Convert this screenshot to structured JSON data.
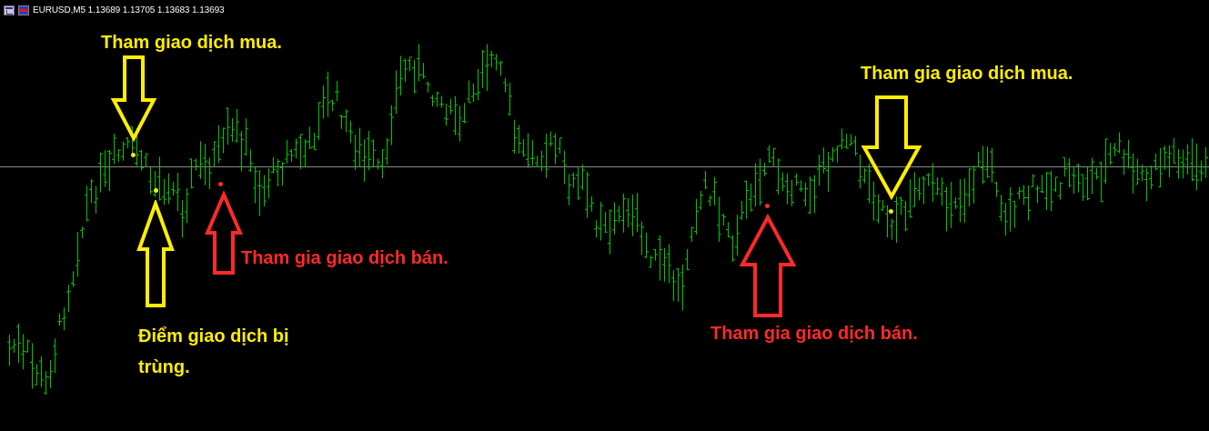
{
  "header": {
    "icons": [
      "chart-window-icon",
      "currency-flag-icon"
    ],
    "text": "EURUSD,M5  1.13689 1.13705 1.13683 1.13693"
  },
  "colors": {
    "background": "#000000",
    "bars": "#00c800",
    "price_line": "#8a8a8a",
    "buy": "#ffee00",
    "sell": "#ff2a2a"
  },
  "annotations": {
    "buy_1": "Tham giao dịch mua.",
    "duplicate_line1": "Điểm giao dịch bị",
    "duplicate_line2": "trùng.",
    "sell_1": "Tham gia giao dịch bán.",
    "sell_2": "Tham gia giao dịch bán.",
    "buy_2": "Tham gia giao dịch mua."
  }
}
